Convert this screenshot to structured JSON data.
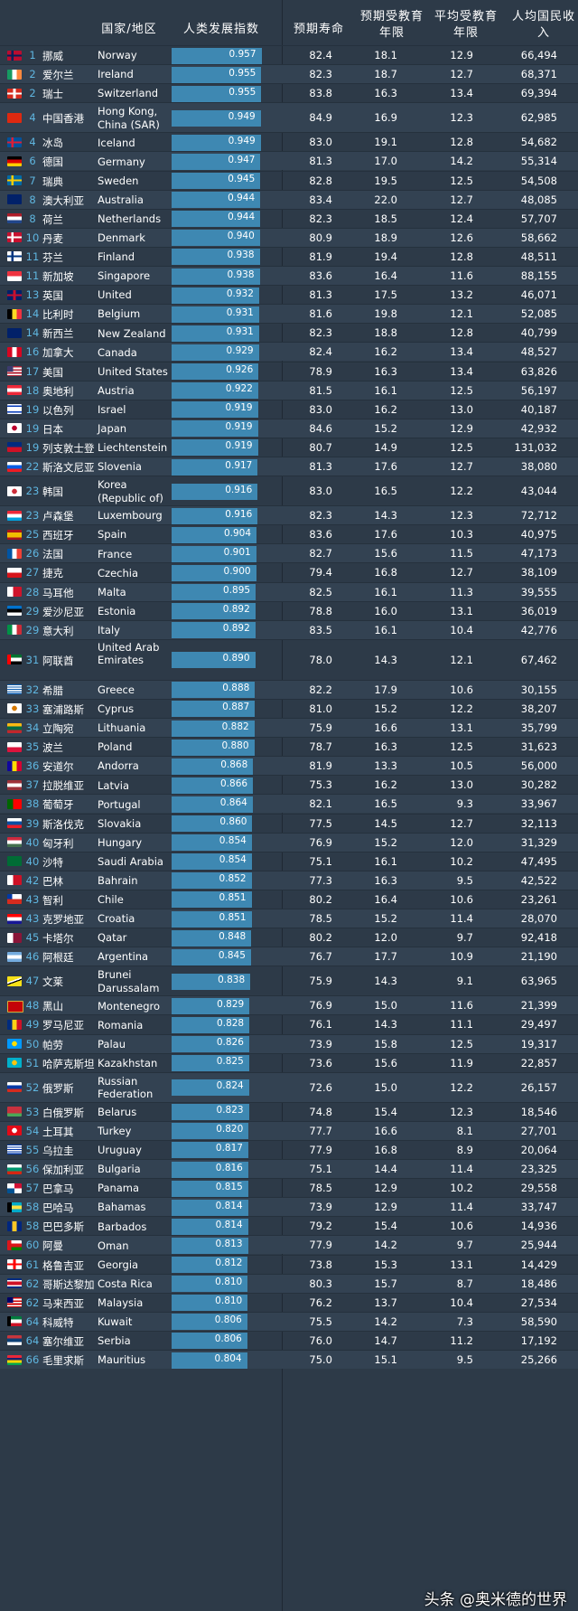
{
  "headers": {
    "country": "国家/地区",
    "hdi": "人类发展指数",
    "life": "预期寿命",
    "expected_years": "预期受教育年限",
    "mean_years": "平均受教育年限",
    "gni": "人均国民收入"
  },
  "watermark": "头条 @奥米德的世界",
  "rows": [
    {
      "rank": "1",
      "cn": "挪威",
      "en": "Norway",
      "hdi": "0.957",
      "life": "82.4",
      "exp": "18.1",
      "mean": "12.9",
      "gni": "66,494",
      "flag": [
        "#ba0c2f",
        "#ffffff",
        "#00205b"
      ],
      "ft": "nordic"
    },
    {
      "rank": "2",
      "cn": "爱尔兰",
      "en": "Ireland",
      "hdi": "0.955",
      "life": "82.3",
      "exp": "18.7",
      "mean": "12.7",
      "gni": "68,371",
      "flag": [
        "#169b62",
        "#ffffff",
        "#ff883e"
      ],
      "ft": "v3"
    },
    {
      "rank": "2",
      "cn": "瑞士",
      "en": "Switzerland",
      "hdi": "0.955",
      "life": "83.8",
      "exp": "16.3",
      "mean": "13.4",
      "gni": "69,394",
      "flag": [
        "#d52b1e",
        "#ffffff"
      ],
      "ft": "cross"
    },
    {
      "rank": "4",
      "cn": "中国香港",
      "en": "Hong Kong, China (SAR)",
      "hdi": "0.949",
      "life": "84.9",
      "exp": "16.9",
      "mean": "12.3",
      "gni": "62,985",
      "flag": [
        "#de2910",
        "#ffffff"
      ],
      "ft": "solid"
    },
    {
      "rank": "4",
      "cn": "冰岛",
      "en": "Iceland",
      "hdi": "0.949",
      "life": "83.0",
      "exp": "19.1",
      "mean": "12.8",
      "gni": "54,682",
      "flag": [
        "#02529c",
        "#ffffff",
        "#dc1e35"
      ],
      "ft": "nordic"
    },
    {
      "rank": "6",
      "cn": "德国",
      "en": "Germany",
      "hdi": "0.947",
      "life": "81.3",
      "exp": "17.0",
      "mean": "14.2",
      "gni": "55,314",
      "flag": [
        "#000000",
        "#dd0000",
        "#ffce00"
      ],
      "ft": "h3"
    },
    {
      "rank": "7",
      "cn": "瑞典",
      "en": "Sweden",
      "hdi": "0.945",
      "life": "82.8",
      "exp": "19.5",
      "mean": "12.5",
      "gni": "54,508",
      "flag": [
        "#006aa7",
        "#fecc00",
        "#fecc00"
      ],
      "ft": "nordic"
    },
    {
      "rank": "8",
      "cn": "澳大利亚",
      "en": "Australia",
      "hdi": "0.944",
      "life": "83.4",
      "exp": "22.0",
      "mean": "12.7",
      "gni": "48,085",
      "flag": [
        "#012169",
        "#ffffff"
      ],
      "ft": "ensign"
    },
    {
      "rank": "8",
      "cn": "荷兰",
      "en": "Netherlands",
      "hdi": "0.944",
      "life": "82.3",
      "exp": "18.5",
      "mean": "12.4",
      "gni": "57,707",
      "flag": [
        "#ae1c28",
        "#ffffff",
        "#21468b"
      ],
      "ft": "h3"
    },
    {
      "rank": "10",
      "cn": "丹麦",
      "en": "Denmark",
      "hdi": "0.940",
      "life": "80.9",
      "exp": "18.9",
      "mean": "12.6",
      "gni": "58,662",
      "flag": [
        "#c8102e",
        "#ffffff",
        "#ffffff"
      ],
      "ft": "nordic"
    },
    {
      "rank": "11",
      "cn": "芬兰",
      "en": "Finland",
      "hdi": "0.938",
      "life": "81.9",
      "exp": "19.4",
      "mean": "12.8",
      "gni": "48,511",
      "flag": [
        "#ffffff",
        "#003580",
        "#003580"
      ],
      "ft": "nordic"
    },
    {
      "rank": "11",
      "cn": "新加坡",
      "en": "Singapore",
      "hdi": "0.938",
      "life": "83.6",
      "exp": "16.4",
      "mean": "11.6",
      "gni": "88,155",
      "flag": [
        "#ef3340",
        "#ffffff"
      ],
      "ft": "h2"
    },
    {
      "rank": "13",
      "cn": "英国",
      "en": "United Kingdom",
      "hdi": "0.932",
      "life": "81.3",
      "exp": "17.5",
      "mean": "13.2",
      "gni": "46,071",
      "flag": [
        "#012169",
        "#ffffff",
        "#c8102e"
      ],
      "ft": "uk"
    },
    {
      "rank": "14",
      "cn": "比利时",
      "en": "Belgium",
      "hdi": "0.931",
      "life": "81.6",
      "exp": "19.8",
      "mean": "12.1",
      "gni": "52,085",
      "flag": [
        "#000000",
        "#fdda24",
        "#ef3340"
      ],
      "ft": "v3"
    },
    {
      "rank": "14",
      "cn": "新西兰",
      "en": "New Zealand",
      "hdi": "0.931",
      "life": "82.3",
      "exp": "18.8",
      "mean": "12.8",
      "gni": "40,799",
      "flag": [
        "#012169",
        "#ffffff"
      ],
      "ft": "ensign"
    },
    {
      "rank": "16",
      "cn": "加拿大",
      "en": "Canada",
      "hdi": "0.929",
      "life": "82.4",
      "exp": "16.2",
      "mean": "13.4",
      "gni": "48,527",
      "flag": [
        "#d80621",
        "#ffffff",
        "#d80621"
      ],
      "ft": "v3"
    },
    {
      "rank": "17",
      "cn": "美国",
      "en": "United States",
      "hdi": "0.926",
      "life": "78.9",
      "exp": "16.3",
      "mean": "13.4",
      "gni": "63,826",
      "flag": [
        "#b22234",
        "#ffffff",
        "#3c3b6e"
      ],
      "ft": "us"
    },
    {
      "rank": "18",
      "cn": "奥地利",
      "en": "Austria",
      "hdi": "0.922",
      "life": "81.5",
      "exp": "16.1",
      "mean": "12.5",
      "gni": "56,197",
      "flag": [
        "#ed2939",
        "#ffffff",
        "#ed2939"
      ],
      "ft": "h3"
    },
    {
      "rank": "19",
      "cn": "以色列",
      "en": "Israel",
      "hdi": "0.919",
      "life": "83.0",
      "exp": "16.2",
      "mean": "13.0",
      "gni": "40,187",
      "flag": [
        "#ffffff",
        "#0038b8"
      ],
      "ft": "il"
    },
    {
      "rank": "19",
      "cn": "日本",
      "en": "Japan",
      "hdi": "0.919",
      "life": "84.6",
      "exp": "15.2",
      "mean": "12.9",
      "gni": "42,932",
      "flag": [
        "#ffffff",
        "#bc002d"
      ],
      "ft": "disc"
    },
    {
      "rank": "19",
      "cn": "列支敦士登",
      "en": "Liechtenstein",
      "hdi": "0.919",
      "life": "80.7",
      "exp": "14.9",
      "mean": "12.5",
      "gni": "131,032",
      "flag": [
        "#002b7f",
        "#ce1126"
      ],
      "ft": "h2"
    },
    {
      "rank": "22",
      "cn": "斯洛文尼亚",
      "en": "Slovenia",
      "hdi": "0.917",
      "life": "81.3",
      "exp": "17.6",
      "mean": "12.7",
      "gni": "38,080",
      "flag": [
        "#ffffff",
        "#005ce5",
        "#ed1c24"
      ],
      "ft": "h3"
    },
    {
      "rank": "23",
      "cn": "韩国",
      "en": "Korea (Republic of)",
      "hdi": "0.916",
      "life": "83.0",
      "exp": "16.5",
      "mean": "12.2",
      "gni": "43,044",
      "flag": [
        "#ffffff",
        "#cd2e3a"
      ],
      "ft": "disc"
    },
    {
      "rank": "23",
      "cn": "卢森堡",
      "en": "Luxembourg",
      "hdi": "0.916",
      "life": "82.3",
      "exp": "14.3",
      "mean": "12.3",
      "gni": "72,712",
      "flag": [
        "#ed2939",
        "#ffffff",
        "#00a1de"
      ],
      "ft": "h3"
    },
    {
      "rank": "25",
      "cn": "西班牙",
      "en": "Spain",
      "hdi": "0.904",
      "life": "83.6",
      "exp": "17.6",
      "mean": "10.3",
      "gni": "40,975",
      "flag": [
        "#aa151b",
        "#f1bf00",
        "#aa151b"
      ],
      "ft": "es"
    },
    {
      "rank": "26",
      "cn": "法国",
      "en": "France",
      "hdi": "0.901",
      "life": "82.7",
      "exp": "15.6",
      "mean": "11.5",
      "gni": "47,173",
      "flag": [
        "#0055a4",
        "#ffffff",
        "#ef4135"
      ],
      "ft": "v3"
    },
    {
      "rank": "27",
      "cn": "捷克",
      "en": "Czechia",
      "hdi": "0.900",
      "life": "79.4",
      "exp": "16.8",
      "mean": "12.7",
      "gni": "38,109",
      "flag": [
        "#ffffff",
        "#d7141a",
        "#11457e"
      ],
      "ft": "cz"
    },
    {
      "rank": "28",
      "cn": "马耳他",
      "en": "Malta",
      "hdi": "0.895",
      "life": "82.5",
      "exp": "16.1",
      "mean": "11.3",
      "gni": "39,555",
      "flag": [
        "#ffffff",
        "#cf142b"
      ],
      "ft": "v2"
    },
    {
      "rank": "29",
      "cn": "爱沙尼亚",
      "en": "Estonia",
      "hdi": "0.892",
      "life": "78.8",
      "exp": "16.0",
      "mean": "13.1",
      "gni": "36,019",
      "flag": [
        "#0072ce",
        "#000000",
        "#ffffff"
      ],
      "ft": "h3"
    },
    {
      "rank": "29",
      "cn": "意大利",
      "en": "Italy",
      "hdi": "0.892",
      "life": "83.5",
      "exp": "16.1",
      "mean": "10.4",
      "gni": "42,776",
      "flag": [
        "#009246",
        "#ffffff",
        "#ce2b37"
      ],
      "ft": "v3"
    },
    {
      "rank": "31",
      "cn": "阿联酋",
      "en": "United Arab Emirates",
      "hdi": "0.890",
      "life": "78.0",
      "exp": "14.3",
      "mean": "12.1",
      "gni": "67,462",
      "flag": [
        "#00732f",
        "#ffffff",
        "#000000",
        "#ff0000"
      ],
      "ft": "uae"
    },
    {
      "rank": "32",
      "cn": "希腊",
      "en": "Greece",
      "hdi": "0.888",
      "life": "82.2",
      "exp": "17.9",
      "mean": "10.6",
      "gni": "30,155",
      "flag": [
        "#0d5eaf",
        "#ffffff"
      ],
      "ft": "stripes"
    },
    {
      "rank": "33",
      "cn": "塞浦路斯",
      "en": "Cyprus",
      "hdi": "0.887",
      "life": "81.0",
      "exp": "15.2",
      "mean": "12.2",
      "gni": "38,207",
      "flag": [
        "#ffffff",
        "#d57800"
      ],
      "ft": "disc"
    },
    {
      "rank": "34",
      "cn": "立陶宛",
      "en": "Lithuania",
      "hdi": "0.882",
      "life": "75.9",
      "exp": "16.6",
      "mean": "13.1",
      "gni": "35,799",
      "flag": [
        "#fdb913",
        "#006a44",
        "#c1272d"
      ],
      "ft": "h3"
    },
    {
      "rank": "35",
      "cn": "波兰",
      "en": "Poland",
      "hdi": "0.880",
      "life": "78.7",
      "exp": "16.3",
      "mean": "12.5",
      "gni": "31,623",
      "flag": [
        "#ffffff",
        "#dc143c"
      ],
      "ft": "h2"
    },
    {
      "rank": "36",
      "cn": "安道尔",
      "en": "Andorra",
      "hdi": "0.868",
      "life": "81.9",
      "exp": "13.3",
      "mean": "10.5",
      "gni": "56,000",
      "flag": [
        "#10069f",
        "#fedd00",
        "#d50032"
      ],
      "ft": "v3"
    },
    {
      "rank": "37",
      "cn": "拉脱维亚",
      "en": "Latvia",
      "hdi": "0.866",
      "life": "75.3",
      "exp": "16.2",
      "mean": "13.0",
      "gni": "30,282",
      "flag": [
        "#9e3039",
        "#ffffff",
        "#9e3039"
      ],
      "ft": "h3"
    },
    {
      "rank": "38",
      "cn": "葡萄牙",
      "en": "Portugal",
      "hdi": "0.864",
      "life": "82.1",
      "exp": "16.5",
      "mean": "9.3",
      "gni": "33,967",
      "flag": [
        "#006600",
        "#ff0000"
      ],
      "ft": "pt"
    },
    {
      "rank": "39",
      "cn": "斯洛伐克",
      "en": "Slovakia",
      "hdi": "0.860",
      "life": "77.5",
      "exp": "14.5",
      "mean": "12.7",
      "gni": "32,113",
      "flag": [
        "#ffffff",
        "#0b4ea2",
        "#ee1c25"
      ],
      "ft": "h3"
    },
    {
      "rank": "40",
      "cn": "匈牙利",
      "en": "Hungary",
      "hdi": "0.854",
      "life": "76.9",
      "exp": "15.2",
      "mean": "12.0",
      "gni": "31,329",
      "flag": [
        "#cd2a3e",
        "#ffffff",
        "#436f4d"
      ],
      "ft": "h3"
    },
    {
      "rank": "40",
      "cn": "沙特",
      "en": "Saudi Arabia",
      "hdi": "0.854",
      "life": "75.1",
      "exp": "16.1",
      "mean": "10.2",
      "gni": "47,495",
      "flag": [
        "#006c35",
        "#ffffff"
      ],
      "ft": "solid"
    },
    {
      "rank": "42",
      "cn": "巴林",
      "en": "Bahrain",
      "hdi": "0.852",
      "life": "77.3",
      "exp": "16.3",
      "mean": "9.5",
      "gni": "42,522",
      "flag": [
        "#ffffff",
        "#ce1126"
      ],
      "ft": "v2"
    },
    {
      "rank": "43",
      "cn": "智利",
      "en": "Chile",
      "hdi": "0.851",
      "life": "80.2",
      "exp": "16.4",
      "mean": "10.6",
      "gni": "23,261",
      "flag": [
        "#ffffff",
        "#d52b1e",
        "#0039a6"
      ],
      "ft": "cl"
    },
    {
      "rank": "43",
      "cn": "克罗地亚",
      "en": "Croatia",
      "hdi": "0.851",
      "life": "78.5",
      "exp": "15.2",
      "mean": "11.4",
      "gni": "28,070",
      "flag": [
        "#ff0000",
        "#ffffff",
        "#171796"
      ],
      "ft": "h3"
    },
    {
      "rank": "45",
      "cn": "卡塔尔",
      "en": "Qatar",
      "hdi": "0.848",
      "life": "80.2",
      "exp": "12.0",
      "mean": "9.7",
      "gni": "92,418",
      "flag": [
        "#ffffff",
        "#8a1538"
      ],
      "ft": "v2"
    },
    {
      "rank": "46",
      "cn": "阿根廷",
      "en": "Argentina",
      "hdi": "0.845",
      "life": "76.7",
      "exp": "17.7",
      "mean": "10.9",
      "gni": "21,190",
      "flag": [
        "#74acdf",
        "#ffffff",
        "#74acdf"
      ],
      "ft": "h3"
    },
    {
      "rank": "47",
      "cn": "文莱",
      "en": "Brunei Darussalam",
      "hdi": "0.838",
      "life": "75.9",
      "exp": "14.3",
      "mean": "9.1",
      "gni": "63,965",
      "flag": [
        "#f7e017",
        "#ffffff",
        "#000000"
      ],
      "ft": "diag"
    },
    {
      "rank": "48",
      "cn": "黑山",
      "en": "Montenegro",
      "hdi": "0.829",
      "life": "76.9",
      "exp": "15.0",
      "mean": "11.6",
      "gni": "21,399",
      "flag": [
        "#d3ae3b",
        "#c40308"
      ],
      "ft": "border"
    },
    {
      "rank": "49",
      "cn": "罗马尼亚",
      "en": "Romania",
      "hdi": "0.828",
      "life": "76.1",
      "exp": "14.3",
      "mean": "11.1",
      "gni": "29,497",
      "flag": [
        "#002b7f",
        "#fcd116",
        "#ce1126"
      ],
      "ft": "v3"
    },
    {
      "rank": "50",
      "cn": "帕劳",
      "en": "Palau",
      "hdi": "0.826",
      "life": "73.9",
      "exp": "15.8",
      "mean": "12.5",
      "gni": "19,317",
      "flag": [
        "#0099ff",
        "#ffde00"
      ],
      "ft": "disc"
    },
    {
      "rank": "51",
      "cn": "哈萨克斯坦",
      "en": "Kazakhstan",
      "hdi": "0.825",
      "life": "73.6",
      "exp": "15.6",
      "mean": "11.9",
      "gni": "22,857",
      "flag": [
        "#00afca",
        "#fec50c"
      ],
      "ft": "disc"
    },
    {
      "rank": "52",
      "cn": "俄罗斯",
      "en": "Russian Federation",
      "hdi": "0.824",
      "life": "72.6",
      "exp": "15.0",
      "mean": "12.2",
      "gni": "26,157",
      "flag": [
        "#ffffff",
        "#0039a6",
        "#d52b1e"
      ],
      "ft": "h3"
    },
    {
      "rank": "53",
      "cn": "白俄罗斯",
      "en": "Belarus",
      "hdi": "0.823",
      "life": "74.8",
      "exp": "15.4",
      "mean": "12.3",
      "gni": "18,546",
      "flag": [
        "#c8313e",
        "#4aa657"
      ],
      "ft": "by"
    },
    {
      "rank": "54",
      "cn": "土耳其",
      "en": "Turkey",
      "hdi": "0.820",
      "life": "77.7",
      "exp": "16.6",
      "mean": "8.1",
      "gni": "27,701",
      "flag": [
        "#e30a17",
        "#ffffff"
      ],
      "ft": "disc"
    },
    {
      "rank": "55",
      "cn": "乌拉圭",
      "en": "Uruguay",
      "hdi": "0.817",
      "life": "77.9",
      "exp": "16.8",
      "mean": "8.9",
      "gni": "20,064",
      "flag": [
        "#0038a8",
        "#ffffff"
      ],
      "ft": "stripes"
    },
    {
      "rank": "56",
      "cn": "保加利亚",
      "en": "Bulgaria",
      "hdi": "0.816",
      "life": "75.1",
      "exp": "14.4",
      "mean": "11.4",
      "gni": "23,325",
      "flag": [
        "#ffffff",
        "#00966e",
        "#d62612"
      ],
      "ft": "h3"
    },
    {
      "rank": "57",
      "cn": "巴拿马",
      "en": "Panama",
      "hdi": "0.815",
      "life": "78.5",
      "exp": "12.9",
      "mean": "10.2",
      "gni": "29,558",
      "flag": [
        "#ffffff",
        "#d21034",
        "#005293"
      ],
      "ft": "quad"
    },
    {
      "rank": "58",
      "cn": "巴哈马",
      "en": "Bahamas",
      "hdi": "0.814",
      "life": "73.9",
      "exp": "12.9",
      "mean": "11.4",
      "gni": "33,747",
      "flag": [
        "#00abc9",
        "#fae042",
        "#000000"
      ],
      "ft": "bs"
    },
    {
      "rank": "58",
      "cn": "巴巴多斯",
      "en": "Barbados",
      "hdi": "0.814",
      "life": "79.2",
      "exp": "15.4",
      "mean": "10.6",
      "gni": "14,936",
      "flag": [
        "#00267f",
        "#ffc726",
        "#00267f"
      ],
      "ft": "v3"
    },
    {
      "rank": "60",
      "cn": "阿曼",
      "en": "Oman",
      "hdi": "0.813",
      "life": "77.9",
      "exp": "14.2",
      "mean": "9.7",
      "gni": "25,944",
      "flag": [
        "#db161b",
        "#ffffff",
        "#008000"
      ],
      "ft": "om"
    },
    {
      "rank": "61",
      "cn": "格鲁吉亚",
      "en": "Georgia",
      "hdi": "0.812",
      "life": "73.8",
      "exp": "15.3",
      "mean": "13.1",
      "gni": "14,429",
      "flag": [
        "#ffffff",
        "#ff0000"
      ],
      "ft": "cross"
    },
    {
      "rank": "62",
      "cn": "哥斯达黎加",
      "en": "Costa Rica",
      "hdi": "0.810",
      "life": "80.3",
      "exp": "15.7",
      "mean": "8.7",
      "gni": "18,486",
      "flag": [
        "#002b7f",
        "#ffffff",
        "#ce1126"
      ],
      "ft": "cr"
    },
    {
      "rank": "62",
      "cn": "马来西亚",
      "en": "Malaysia",
      "hdi": "0.810",
      "life": "76.2",
      "exp": "13.7",
      "mean": "10.4",
      "gni": "27,534",
      "flag": [
        "#cc0001",
        "#ffffff",
        "#010066"
      ],
      "ft": "us"
    },
    {
      "rank": "64",
      "cn": "科威特",
      "en": "Kuwait",
      "hdi": "0.806",
      "life": "75.5",
      "exp": "14.2",
      "mean": "7.3",
      "gni": "58,590",
      "flag": [
        "#007a3d",
        "#ffffff",
        "#ce1126",
        "#000000"
      ],
      "ft": "uae"
    },
    {
      "rank": "64",
      "cn": "塞尔维亚",
      "en": "Serbia",
      "hdi": "0.806",
      "life": "76.0",
      "exp": "14.7",
      "mean": "11.2",
      "gni": "17,192",
      "flag": [
        "#c6363c",
        "#0c4076",
        "#ffffff"
      ],
      "ft": "h3"
    },
    {
      "rank": "66",
      "cn": "毛里求斯",
      "en": "Mauritius",
      "hdi": "0.804",
      "life": "75.0",
      "exp": "15.1",
      "mean": "9.5",
      "gni": "25,266",
      "flag": [
        "#ea2839",
        "#1a206d",
        "#ffd500",
        "#00a551"
      ],
      "ft": "h4"
    }
  ]
}
